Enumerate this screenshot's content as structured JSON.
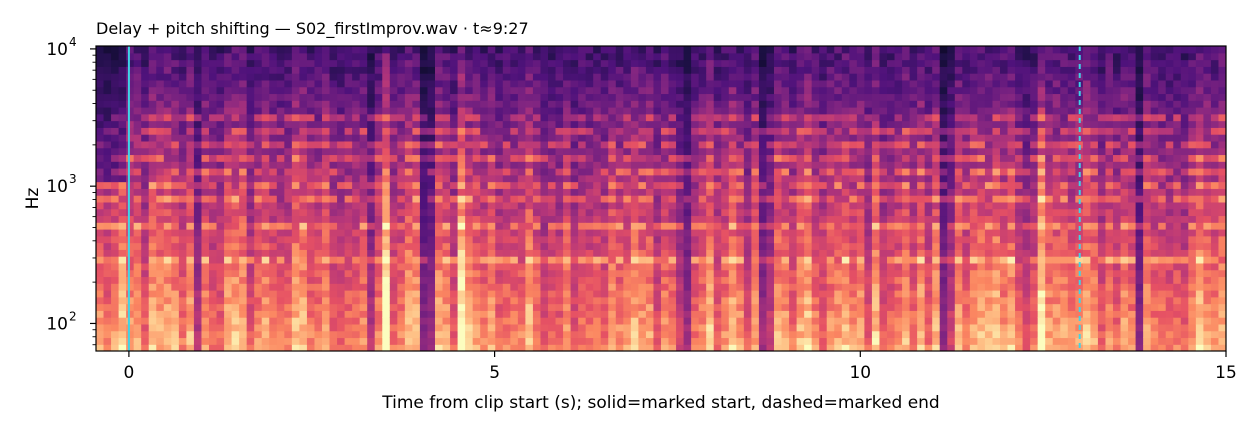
{
  "chart_data": {
    "type": "heatmap",
    "title": "Delay + pitch shifting  —  S02_firstImprov.wav · t≈9:27",
    "xlabel": "Time from clip start (s); solid=marked start, dashed=marked end",
    "ylabel": "Hz",
    "xlim": [
      -0.45,
      15
    ],
    "ylim": [
      63,
      10500
    ],
    "yscale": "log",
    "grid": false,
    "x_ticks": [
      {
        "value": 0,
        "label": "0"
      },
      {
        "value": 5,
        "label": "5"
      },
      {
        "value": 10,
        "label": "10"
      },
      {
        "value": 15,
        "label": "15"
      }
    ],
    "y_ticks": [
      {
        "value": 100,
        "label": "10",
        "exp": "2"
      },
      {
        "value": 1000,
        "label": "10",
        "exp": "3"
      },
      {
        "value": 10000,
        "label": "10",
        "exp": "4"
      }
    ],
    "markers": [
      {
        "type": "solid",
        "x": 0.0,
        "color": "#3fd4e6"
      },
      {
        "type": "dashed",
        "x": 13.0,
        "color": "#3fd4e6"
      }
    ],
    "colormap": "magma",
    "colors": {
      "low": "#1a0a3c",
      "mid": "#b5367a",
      "high": "#fcc591"
    }
  }
}
